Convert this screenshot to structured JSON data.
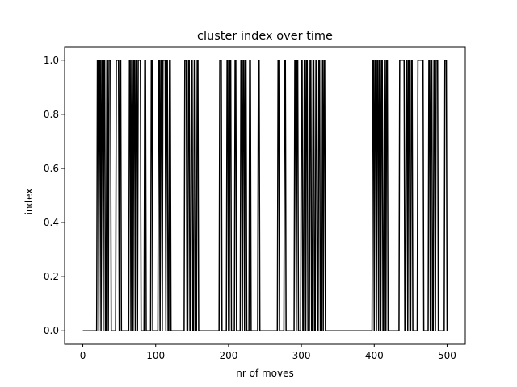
{
  "chart_data": {
    "type": "line",
    "title": "cluster index over time",
    "xlabel": "nr of moves",
    "ylabel": "index",
    "xlim": [
      -25,
      525
    ],
    "ylim": [
      -0.05,
      1.05
    ],
    "x_ticks": [
      0,
      100,
      200,
      300,
      400,
      500
    ],
    "x_tick_labels": [
      "0",
      "100",
      "200",
      "300",
      "400",
      "500"
    ],
    "y_ticks": [
      0.0,
      0.2,
      0.4,
      0.6,
      0.8,
      1.0
    ],
    "y_tick_labels": [
      "0.0",
      "0.2",
      "0.4",
      "0.6",
      "0.8",
      "1.0"
    ],
    "grid": false,
    "line_color": "#000000",
    "series": [
      {
        "x_start": 0,
        "x_end": 500,
        "step": 1,
        "ones_ranges": [
          [
            20,
            21
          ],
          [
            23,
            24
          ],
          [
            26,
            27
          ],
          [
            29,
            30
          ],
          [
            33,
            34
          ],
          [
            36,
            38
          ],
          [
            46,
            49
          ],
          [
            51,
            52
          ],
          [
            64,
            65
          ],
          [
            67,
            68
          ],
          [
            70,
            71
          ],
          [
            73,
            74
          ],
          [
            76,
            79
          ],
          [
            85,
            86
          ],
          [
            94,
            95
          ],
          [
            104,
            105
          ],
          [
            107,
            108
          ],
          [
            110,
            113
          ],
          [
            115,
            116
          ],
          [
            119,
            120
          ],
          [
            140,
            142
          ],
          [
            145,
            146
          ],
          [
            149,
            150
          ],
          [
            153,
            154
          ],
          [
            157,
            158
          ],
          [
            188,
            190
          ],
          [
            198,
            199
          ],
          [
            202,
            203
          ],
          [
            209,
            210
          ],
          [
            217,
            218
          ],
          [
            220,
            221
          ],
          [
            223,
            224
          ],
          [
            229,
            230
          ],
          [
            241,
            242
          ],
          [
            268,
            269
          ],
          [
            277,
            278
          ],
          [
            291,
            292
          ],
          [
            294,
            295
          ],
          [
            300,
            301
          ],
          [
            304,
            305
          ],
          [
            307,
            308
          ],
          [
            312,
            313
          ],
          [
            316,
            317
          ],
          [
            320,
            321
          ],
          [
            324,
            325
          ],
          [
            328,
            329
          ],
          [
            331,
            332
          ],
          [
            398,
            399
          ],
          [
            401,
            402
          ],
          [
            404,
            405
          ],
          [
            407,
            408
          ],
          [
            410,
            411
          ],
          [
            414,
            415
          ],
          [
            417,
            418
          ],
          [
            435,
            441
          ],
          [
            444,
            445
          ],
          [
            447,
            448
          ],
          [
            451,
            452
          ],
          [
            460,
            467
          ],
          [
            475,
            476
          ],
          [
            478,
            479
          ],
          [
            482,
            483
          ],
          [
            485,
            487
          ],
          [
            497,
            499
          ]
        ]
      }
    ]
  }
}
